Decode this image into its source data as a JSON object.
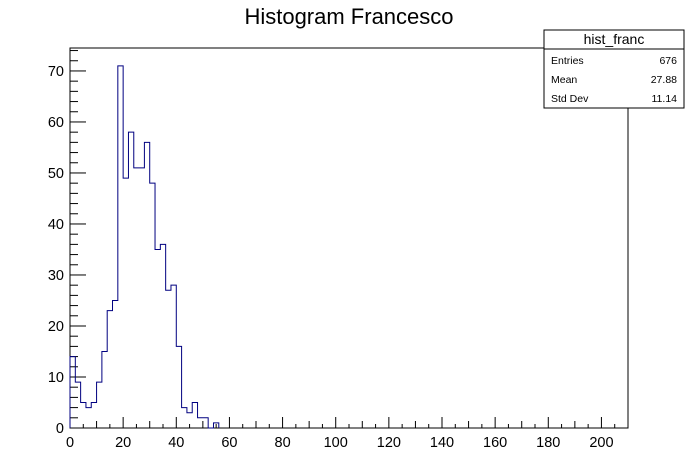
{
  "chart_data": {
    "type": "bar",
    "histogram": true,
    "title": "Histogram Francesco",
    "xlabel": "",
    "ylabel": "",
    "xlim": [
      0,
      210
    ],
    "ylim": [
      0,
      74.5
    ],
    "bin_width": 2,
    "bin_start": 0,
    "x_ticks": [
      0,
      20,
      40,
      60,
      80,
      100,
      120,
      140,
      160,
      180,
      200
    ],
    "y_ticks": [
      0,
      10,
      20,
      30,
      40,
      50,
      60,
      70
    ],
    "values": [
      14,
      9,
      5,
      4,
      5,
      9,
      15,
      23,
      25,
      71,
      49,
      58,
      51,
      51,
      56,
      48,
      35,
      36,
      27,
      28,
      16,
      4,
      3,
      5,
      2,
      2,
      0,
      1
    ],
    "line_color": "#000080",
    "grid": false,
    "stats_box": {
      "name": "hist_franc",
      "rows": [
        {
          "label": "Entries",
          "value": "676"
        },
        {
          "label": "Mean",
          "value": "27.88"
        },
        {
          "label": "Std Dev",
          "value": "11.14"
        }
      ]
    }
  }
}
